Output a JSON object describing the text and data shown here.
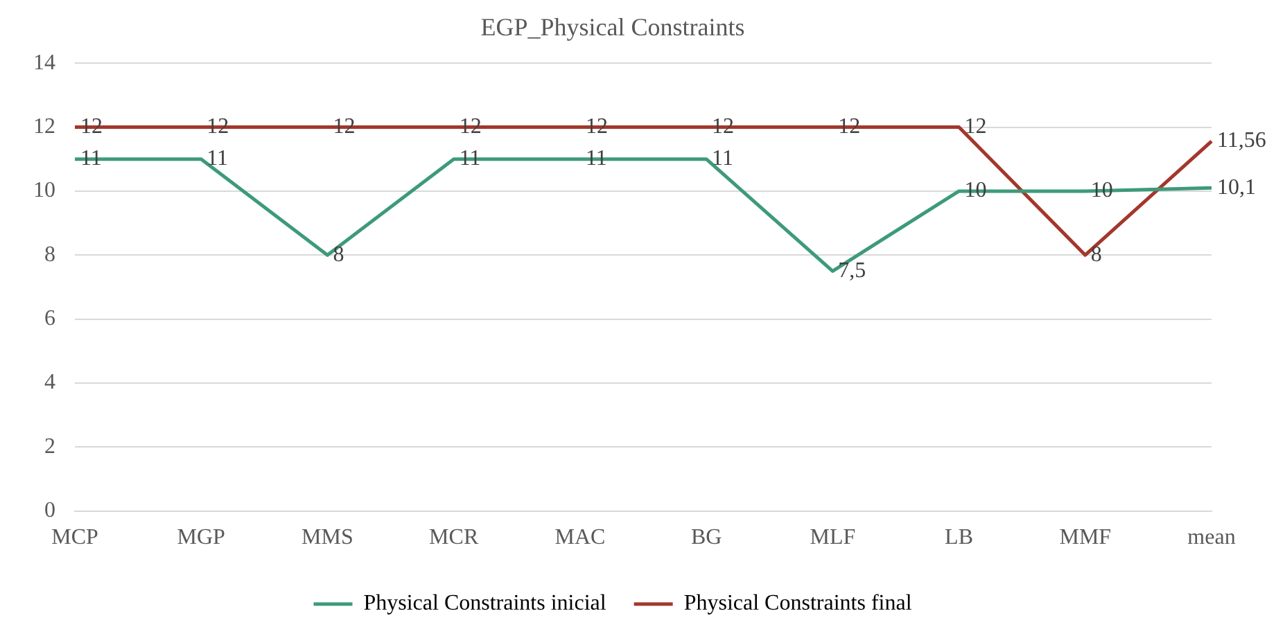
{
  "chart_data": {
    "type": "line",
    "title": "EGP_Physical Constraints",
    "categories": [
      "MCP",
      "MGP",
      "MMS",
      "MCR",
      "MAC",
      "BG",
      "MLF",
      "LB",
      "MMF",
      "mean"
    ],
    "series": [
      {
        "name": "Physical Constraints inicial",
        "color": "#3d9a7a",
        "values": [
          11,
          11,
          8,
          11,
          11,
          11,
          7.5,
          10,
          10,
          10.1
        ],
        "value_labels": [
          "11",
          "11",
          "8",
          "11",
          "11",
          "11",
          "7,5",
          "10",
          "10",
          "10,1"
        ]
      },
      {
        "name": "Physical Constraints final",
        "color": "#a3372c",
        "values": [
          12,
          12,
          12,
          12,
          12,
          12,
          12,
          12,
          8,
          11.56
        ],
        "value_labels": [
          "12",
          "12",
          "12",
          "12",
          "12",
          "12",
          "12",
          "12",
          "8",
          "11,56"
        ]
      }
    ],
    "ylim": [
      0,
      14
    ],
    "yticks": [
      0,
      2,
      4,
      6,
      8,
      10,
      12,
      14
    ],
    "grid": "y",
    "legend": "bottom",
    "marker": "none",
    "line_style": "solid"
  }
}
